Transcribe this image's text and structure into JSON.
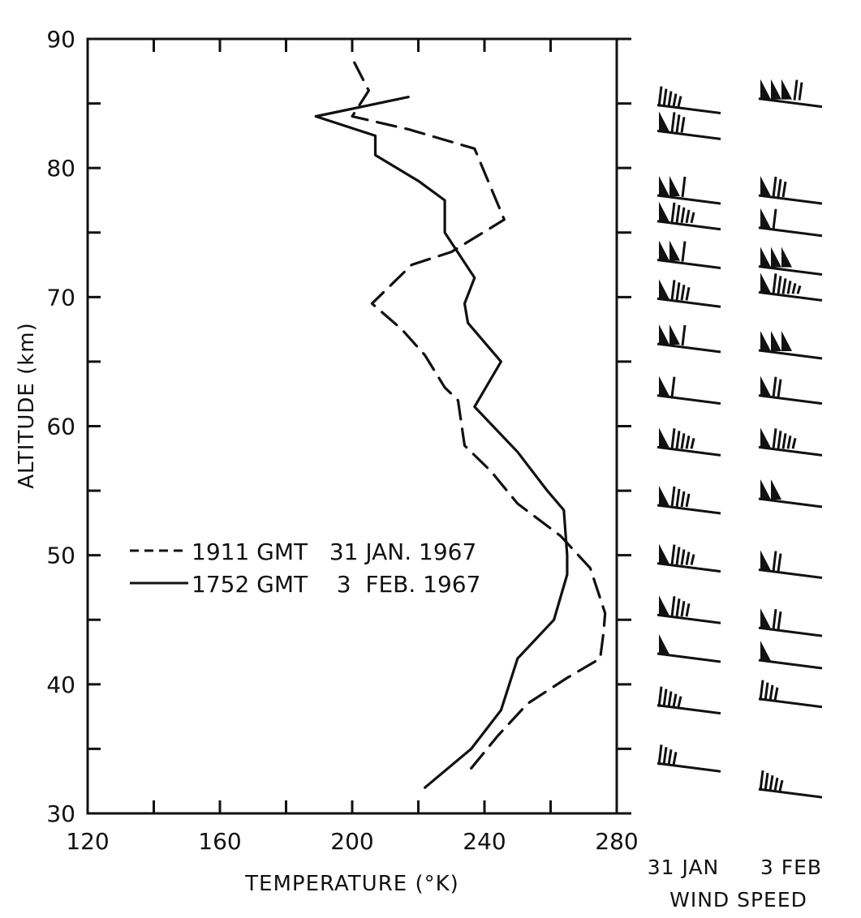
{
  "chart_data": {
    "type": "line",
    "xlabel": "TEMPERATURE (°K)",
    "ylabel": "ALTITUDE (km)",
    "xlim": [
      120,
      280
    ],
    "ylim": [
      30,
      90
    ],
    "x_tick_labels": [
      "120",
      "160",
      "200",
      "240",
      "280"
    ],
    "y_tick_labels": [
      "30",
      "40",
      "50",
      "60",
      "70",
      "80",
      "90"
    ],
    "series": [
      {
        "name": "1911 GMT 31 JAN. 1967",
        "style": "dashed",
        "points": [
          [
            236,
            33.5
          ],
          [
            244,
            36
          ],
          [
            253,
            38.5
          ],
          [
            265,
            40.5
          ],
          [
            275,
            42
          ],
          [
            276,
            44
          ],
          [
            276.5,
            45.5
          ],
          [
            272,
            49
          ],
          [
            263,
            51.5
          ],
          [
            250,
            54
          ],
          [
            242,
            56.5
          ],
          [
            234,
            58.5
          ],
          [
            232,
            62
          ],
          [
            228,
            63
          ],
          [
            222,
            65.5
          ],
          [
            215,
            67.5
          ],
          [
            206,
            69.5
          ],
          [
            218,
            72.5
          ],
          [
            230,
            73.5
          ],
          [
            246,
            76
          ],
          [
            237,
            81.5
          ],
          [
            217,
            83
          ],
          [
            200,
            84
          ],
          [
            205,
            86
          ],
          [
            200,
            88.5
          ]
        ]
      },
      {
        "name": "1752 GMT 3 FEB. 1967",
        "style": "solid",
        "points": [
          [
            222,
            32
          ],
          [
            236,
            35
          ],
          [
            245,
            38
          ],
          [
            250,
            42
          ],
          [
            261,
            45
          ],
          [
            265,
            48.5
          ],
          [
            265,
            50
          ],
          [
            264,
            53.5
          ],
          [
            259,
            55
          ],
          [
            250,
            58
          ],
          [
            237,
            61.5
          ],
          [
            245,
            65
          ],
          [
            235,
            68
          ],
          [
            234,
            69.5
          ],
          [
            237,
            71.5
          ],
          [
            228,
            75
          ],
          [
            228,
            77.5
          ],
          [
            220,
            79
          ],
          [
            207,
            81
          ],
          [
            207,
            82.5
          ],
          [
            189,
            84
          ],
          [
            217,
            85.5
          ]
        ]
      }
    ]
  },
  "legend": {
    "entries": [
      {
        "label": "1911 GMT   31 JAN. 1967",
        "style": "dashed"
      },
      {
        "label": "1752 GMT    3  FEB. 1967",
        "style": "solid"
      }
    ]
  },
  "wind_panel": {
    "title": "WIND SPEED",
    "columns": [
      "31 JAN",
      "3 FEB"
    ],
    "barbs_31_jan": [
      {
        "alt": 33.5,
        "flags": 0,
        "barbs": 4
      },
      {
        "alt": 38,
        "flags": 0,
        "barbs": 5
      },
      {
        "alt": 42,
        "flags": 1,
        "barbs": 0
      },
      {
        "alt": 45,
        "flags": 1,
        "barbs": 4
      },
      {
        "alt": 49,
        "flags": 1,
        "barbs": 5
      },
      {
        "alt": 53.5,
        "flags": 1,
        "barbs": 4
      },
      {
        "alt": 58,
        "flags": 1,
        "barbs": 5
      },
      {
        "alt": 62,
        "flags": 1,
        "barbs": 1
      },
      {
        "alt": 66,
        "flags": 2,
        "barbs": 1
      },
      {
        "alt": 69.5,
        "flags": 1,
        "barbs": 4
      },
      {
        "alt": 72.5,
        "flags": 2,
        "barbs": 1
      },
      {
        "alt": 75.5,
        "flags": 1,
        "barbs": 5
      },
      {
        "alt": 77.5,
        "flags": 2,
        "barbs": 1
      },
      {
        "alt": 82.5,
        "flags": 1,
        "barbs": 3
      },
      {
        "alt": 84.5,
        "flags": 0,
        "barbs": 5
      }
    ],
    "barbs_3_feb": [
      {
        "alt": 31.5,
        "flags": 0,
        "barbs": 5
      },
      {
        "alt": 38.5,
        "flags": 0,
        "barbs": 4
      },
      {
        "alt": 41.5,
        "flags": 1,
        "barbs": 0
      },
      {
        "alt": 44,
        "flags": 1,
        "barbs": 2
      },
      {
        "alt": 48.5,
        "flags": 1,
        "barbs": 2
      },
      {
        "alt": 54,
        "flags": 2,
        "barbs": 0
      },
      {
        "alt": 58,
        "flags": 1,
        "barbs": 5
      },
      {
        "alt": 62,
        "flags": 1,
        "barbs": 2
      },
      {
        "alt": 65.5,
        "flags": 3,
        "barbs": 0
      },
      {
        "alt": 70,
        "flags": 1,
        "barbs": 6
      },
      {
        "alt": 72,
        "flags": 3,
        "barbs": 0
      },
      {
        "alt": 75,
        "flags": 1,
        "barbs": 1
      },
      {
        "alt": 77.5,
        "flags": 1,
        "barbs": 3
      },
      {
        "alt": 85,
        "flags": 3,
        "barbs": 2
      }
    ]
  }
}
